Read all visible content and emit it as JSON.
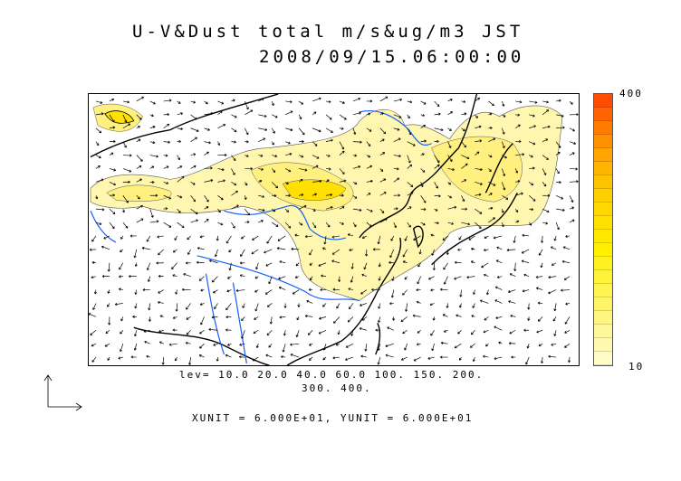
{
  "title": {
    "line1": "U-V&Dust total m/s&ug/m3 JST",
    "line2": "2008/09/15.06:00:00"
  },
  "contour_levels": {
    "line1": "lev= 10.0 20.0 40.0 60.0 100. 150. 200.",
    "line2": "300. 400."
  },
  "units": "XUNIT = 6.000E+01, YUNIT = 6.000E+01",
  "colorbar": {
    "max_label": "400",
    "min_label": "10",
    "colors": [
      "#fffcc8",
      "#fffab0",
      "#fff89a",
      "#fff680",
      "#fff468",
      "#fff450",
      "#fff238",
      "#fff020",
      "#fff000",
      "#ffe800",
      "#ffe000",
      "#ffd800",
      "#ffd000",
      "#ffc400",
      "#ffb400",
      "#ffa400",
      "#ff9000",
      "#ff7c00",
      "#ff6400",
      "#ff4c00"
    ]
  },
  "colors": {
    "dust_light": "#fff7b0",
    "dust_mid": "#fff080",
    "dust_high": "#ffe000",
    "river": "#1060ff",
    "coast": "#000000"
  }
}
